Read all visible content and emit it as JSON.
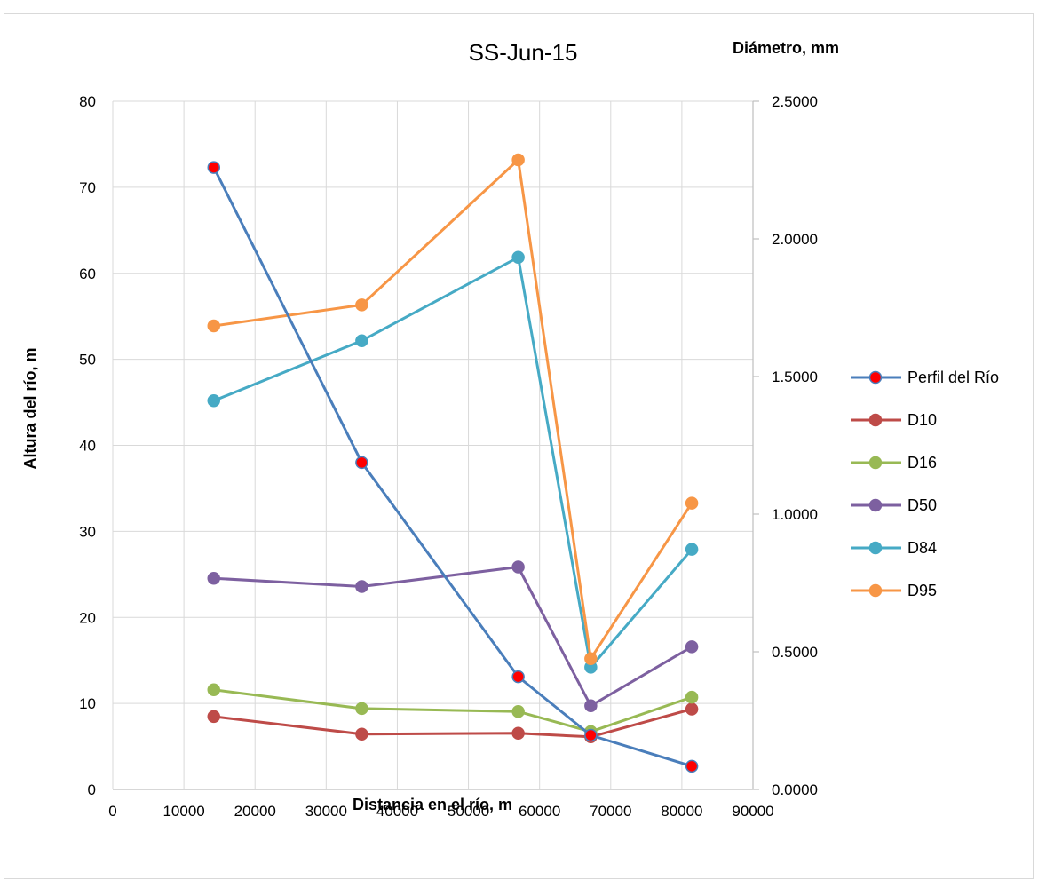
{
  "chart_data": {
    "type": "line",
    "title": "SS-Jun-15",
    "xlabel": "Distancia en el río, m",
    "ylabel": "Altura del río, m",
    "y2label": "Diámetro, mm",
    "xlim": [
      0,
      90000
    ],
    "ylim": [
      0,
      80
    ],
    "y2lim": [
      0,
      2.5
    ],
    "x_ticks": [
      "0",
      "10000",
      "20000",
      "30000",
      "40000",
      "50000",
      "60000",
      "70000",
      "80000",
      "90000"
    ],
    "y_ticks": [
      "0",
      "10",
      "20",
      "30",
      "40",
      "50",
      "60",
      "70",
      "80"
    ],
    "y2_ticks": [
      "0.0000",
      "0.5000",
      "1.0000",
      "1.5000",
      "2.0000",
      "2.5000"
    ],
    "grid": "vertical and horizontal major gridlines",
    "legend_position": "right",
    "x": [
      14200,
      35000,
      57000,
      67200,
      81400
    ],
    "series": [
      {
        "name": "Perfil del Río",
        "axis": "left",
        "color": "#4a7ebb",
        "marker_color": "#ff0000",
        "values": [
          72.3,
          38.0,
          13.1,
          6.3,
          2.7
        ]
      },
      {
        "name": "D10",
        "axis": "right",
        "color": "#be4b48",
        "marker_color": "#be4b48",
        "values": [
          0.265,
          0.201,
          0.204,
          0.191,
          0.292
        ]
      },
      {
        "name": "D16",
        "axis": "right",
        "color": "#98b954",
        "marker_color": "#98b954",
        "values": [
          0.362,
          0.294,
          0.283,
          0.21,
          0.335
        ]
      },
      {
        "name": "D50",
        "axis": "right",
        "color": "#7d60a0",
        "marker_color": "#7d60a0",
        "values": [
          0.767,
          0.737,
          0.808,
          0.304,
          0.518
        ]
      },
      {
        "name": "D84",
        "axis": "right",
        "color": "#46aac5",
        "marker_color": "#46aac5",
        "values": [
          1.412,
          1.63,
          1.933,
          0.444,
          0.872
        ]
      },
      {
        "name": "D95",
        "axis": "right",
        "color": "#f79646",
        "marker_color": "#f79646",
        "values": [
          1.684,
          1.76,
          2.287,
          0.475,
          1.04
        ]
      }
    ]
  }
}
